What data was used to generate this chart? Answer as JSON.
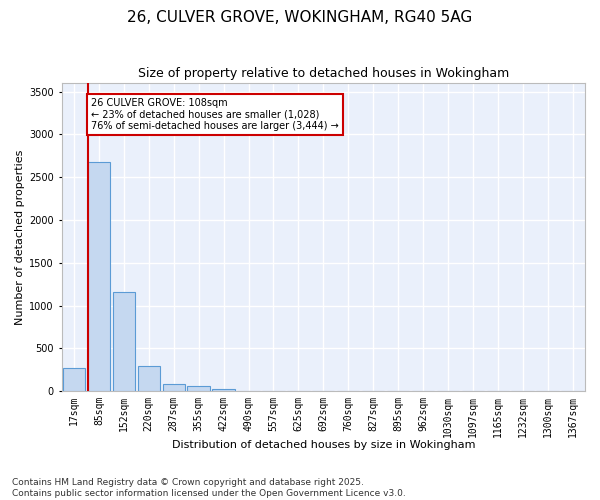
{
  "title_line1": "26, CULVER GROVE, WOKINGHAM, RG40 5AG",
  "title_line2": "Size of property relative to detached houses in Wokingham",
  "xlabel": "Distribution of detached houses by size in Wokingham",
  "ylabel": "Number of detached properties",
  "bar_color": "#c5d8f0",
  "bar_edge_color": "#5b9bd5",
  "background_color": "#eaf0fb",
  "grid_color": "#ffffff",
  "fig_background_color": "#ffffff",
  "categories": [
    "17sqm",
    "85sqm",
    "152sqm",
    "220sqm",
    "287sqm",
    "355sqm",
    "422sqm",
    "490sqm",
    "557sqm",
    "625sqm",
    "692sqm",
    "760sqm",
    "827sqm",
    "895sqm",
    "962sqm",
    "1030sqm",
    "1097sqm",
    "1165sqm",
    "1232sqm",
    "1300sqm",
    "1367sqm"
  ],
  "values": [
    270,
    2680,
    1160,
    290,
    90,
    60,
    30,
    5,
    0,
    0,
    0,
    0,
    0,
    0,
    0,
    0,
    0,
    0,
    0,
    0,
    0
  ],
  "property_line_color": "#cc0000",
  "annotation_text": "26 CULVER GROVE: 108sqm\n← 23% of detached houses are smaller (1,028)\n76% of semi-detached houses are larger (3,444) →",
  "annotation_box_color": "#cc0000",
  "annotation_text_color": "#000000",
  "ylim": [
    0,
    3600
  ],
  "yticks": [
    0,
    500,
    1000,
    1500,
    2000,
    2500,
    3000,
    3500
  ],
  "footer_line1": "Contains HM Land Registry data © Crown copyright and database right 2025.",
  "footer_line2": "Contains public sector information licensed under the Open Government Licence v3.0.",
  "title_fontsize": 11,
  "subtitle_fontsize": 9,
  "axis_label_fontsize": 8,
  "tick_fontsize": 7,
  "footer_fontsize": 6.5
}
